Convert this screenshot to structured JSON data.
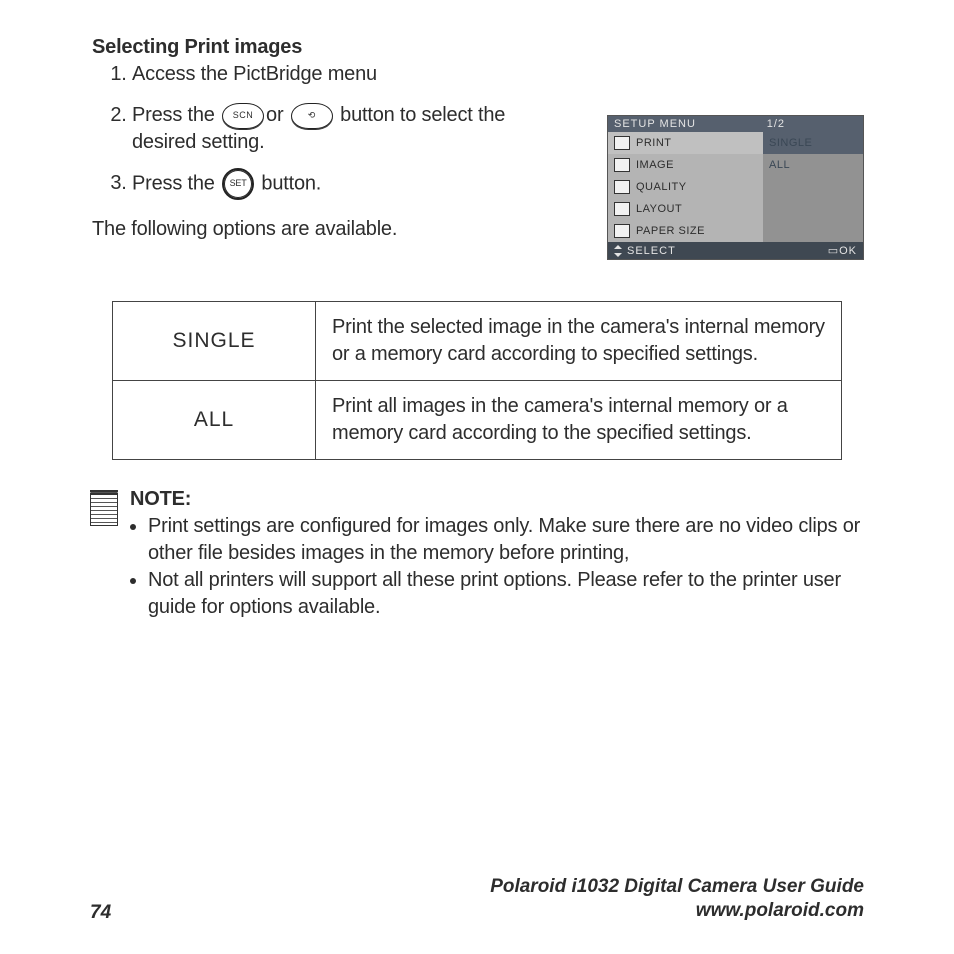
{
  "heading": "Selecting Print images",
  "steps": {
    "s1": "Access the PictBridge menu",
    "s2_part1": "Press the",
    "s2_btn1": "SCN",
    "s2_or": "or",
    "s2_btn2": "⟲",
    "s2_part2": "button to select the desired setting.",
    "s3_part1": "Press the",
    "s3_btn": "SET",
    "s3_part2": "button."
  },
  "lead_out": "The following options are available.",
  "camera_menu": {
    "title": "SETUP MENU",
    "page": "1/2",
    "left": [
      "PRINT",
      "IMAGE",
      "QUALITY",
      "LAYOUT",
      "PAPER SIZE"
    ],
    "right": [
      "SINGLE",
      "ALL"
    ],
    "footer_left": "SELECT",
    "footer_right": "OK"
  },
  "table": {
    "r1_label": "SINGLE",
    "r1_desc": "Print the selected image in the camera's internal memory or a memory card according to specified settings.",
    "r2_label": "ALL",
    "r2_desc": "Print all images in the camera's internal memory or a memory card according to the specified settings."
  },
  "note": {
    "title": "NOTE:",
    "b1": "Print settings are configured for images only. Make sure there are no video clips or other file besides images in the memory before printing,",
    "b2": "Not all printers will support all these print options. Please refer to the printer user guide for options available."
  },
  "footer": {
    "page_number": "74",
    "line1": "Polaroid i1032 Digital Camera User Guide",
    "line2": "www.polaroid.com"
  }
}
